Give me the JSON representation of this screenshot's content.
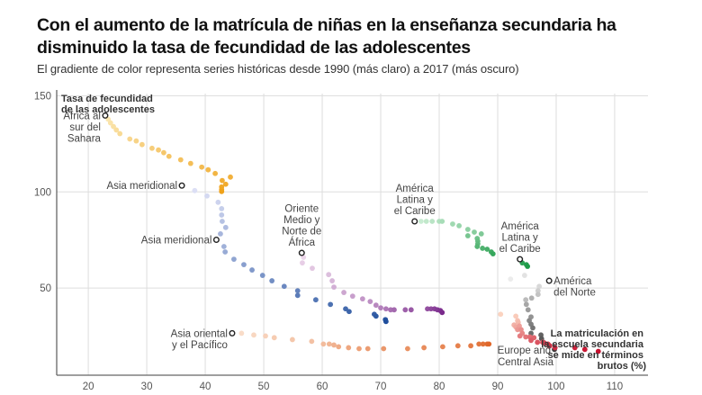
{
  "header": {
    "title": "Con el aumento de la matrícula de niñas en la enseñanza secundaria ha disminuido la tasa de fecundidad de las adolescentes",
    "subtitle": "El gradiente de color representa series históricas desde 1990 (más claro) a 2017 (más oscuro)"
  },
  "chart_data": {
    "type": "scatter",
    "title": "Con el aumento de la matrícula de niñas en la enseñanza secundaria ha disminuido la tasa de fecundidad de las adolescentes",
    "subtitle": "El gradiente de color representa series históricas desde 1990 (más claro) a 2017 (más oscuro)",
    "xlabel": "La matriculación en la escuela secundaria se mide en términos brutos (%)",
    "ylabel": "Tasa de fecundidad de las adolescentes",
    "xlim": [
      14.6,
      115.7
    ],
    "ylim": [
      4.7,
      153
    ],
    "x_ticks": [
      20,
      30,
      40,
      50,
      60,
      70,
      80,
      90,
      100,
      110
    ],
    "y_ticks": [
      50,
      100,
      150
    ],
    "grid": true,
    "color_encoding": "gradient light (1990) to dark (2017)",
    "series": [
      {
        "name": "África al sur del Sahara",
        "color_light": "#fbe9b7",
        "color_dark": "#efa21a",
        "points": [
          [
            22.9,
            139.7
          ],
          [
            23.4,
            137.8
          ],
          [
            23.8,
            135.9
          ],
          [
            24.3,
            134.0
          ],
          [
            24.8,
            132.2
          ],
          [
            25.4,
            130.3
          ],
          [
            27.1,
            127.5
          ],
          [
            28.2,
            126.5
          ],
          [
            29.2,
            124.6
          ],
          [
            30.9,
            122.7
          ],
          [
            32.0,
            121.8
          ],
          [
            32.9,
            120.4
          ],
          [
            33.8,
            118.5
          ],
          [
            35.8,
            116.7
          ],
          [
            37.5,
            114.8
          ],
          [
            39.4,
            112.9
          ],
          [
            40.5,
            111.5
          ],
          [
            41.7,
            109.6
          ],
          [
            44.3,
            107.7
          ],
          [
            42.9,
            105.9
          ],
          [
            43.5,
            104.0
          ],
          [
            42.8,
            102.6
          ],
          [
            42.8,
            101.2
          ],
          [
            42.8,
            100.2
          ]
        ]
      },
      {
        "name": "Asia meridional",
        "color_light": "#dcdff5",
        "color_dark": "#1f4e9c",
        "points": [
          [
            38.2,
            100.7
          ],
          [
            40.3,
            97.9
          ],
          [
            42.2,
            94.6
          ],
          [
            42.8,
            91.3
          ],
          [
            42.8,
            88.0
          ],
          [
            42.9,
            84.7
          ],
          [
            43.5,
            81.5
          ],
          [
            42.6,
            78.2
          ],
          [
            43.2,
            71.6
          ],
          [
            43.4,
            68.8
          ],
          [
            44.9,
            65.0
          ],
          [
            46.6,
            62.2
          ],
          [
            48.0,
            59.4
          ],
          [
            49.8,
            56.6
          ],
          [
            51.4,
            53.8
          ],
          [
            53.5,
            50.9
          ],
          [
            55.8,
            48.6
          ],
          [
            55.8,
            46.2
          ],
          [
            58.9,
            43.9
          ],
          [
            61.4,
            41.5
          ],
          [
            64.0,
            39.2
          ],
          [
            64.6,
            37.8
          ],
          [
            68.9,
            36.4
          ],
          [
            69.2,
            35.4
          ],
          [
            70.8,
            33.6
          ],
          [
            70.9,
            32.6
          ]
        ]
      },
      {
        "name": "Oriente Medio y Norte de África",
        "color_light": "#ecd6ea",
        "color_dark": "#7a2a8c",
        "points": [
          [
            56.8,
            66.0
          ],
          [
            56.6,
            63.1
          ],
          [
            58.3,
            60.3
          ],
          [
            61.1,
            57.0
          ],
          [
            61.7,
            53.8
          ],
          [
            62.0,
            50.5
          ],
          [
            63.7,
            47.7
          ],
          [
            65.2,
            45.8
          ],
          [
            66.9,
            44.4
          ],
          [
            68.2,
            43.0
          ],
          [
            69.2,
            41.1
          ],
          [
            70.0,
            39.7
          ],
          [
            70.9,
            39.2
          ],
          [
            71.7,
            38.7
          ],
          [
            72.3,
            38.7
          ],
          [
            74.2,
            38.7
          ],
          [
            75.2,
            38.7
          ],
          [
            78.0,
            39.2
          ],
          [
            78.6,
            39.2
          ],
          [
            79.2,
            39.2
          ],
          [
            79.7,
            38.7
          ],
          [
            80.2,
            38.3
          ],
          [
            80.5,
            37.3
          ]
        ]
      },
      {
        "name": "América Latina y el Caribe",
        "color_light": "#c9ecd2",
        "color_dark": "#1e9b48",
        "points": [
          [
            76.9,
            84.7
          ],
          [
            77.8,
            84.7
          ],
          [
            78.8,
            84.7
          ],
          [
            80.0,
            84.7
          ],
          [
            80.5,
            84.7
          ],
          [
            82.3,
            83.3
          ],
          [
            83.4,
            82.4
          ],
          [
            84.9,
            80.5
          ],
          [
            86.0,
            79.1
          ],
          [
            87.2,
            78.2
          ],
          [
            84.9,
            77.2
          ],
          [
            86.5,
            75.8
          ],
          [
            86.6,
            74.4
          ],
          [
            86.6,
            73.0
          ],
          [
            86.5,
            71.6
          ],
          [
            87.4,
            70.7
          ],
          [
            88.2,
            70.2
          ],
          [
            88.9,
            68.8
          ],
          [
            89.2,
            67.8
          ],
          [
            94.2,
            63.1
          ],
          [
            94.9,
            62.2
          ],
          [
            95.1,
            61.3
          ]
        ]
      },
      {
        "name": "América del Norte",
        "color_light": "#ececec",
        "color_dark": "#3a3a3a",
        "points": [
          [
            92.2,
            54.7
          ],
          [
            94.6,
            56.6
          ],
          [
            97.1,
            50.9
          ],
          [
            96.9,
            48.6
          ],
          [
            96.9,
            46.7
          ],
          [
            94.8,
            43.9
          ],
          [
            95.8,
            44.8
          ],
          [
            94.9,
            41.5
          ],
          [
            95.2,
            38.7
          ],
          [
            95.7,
            35.0
          ],
          [
            95.4,
            33.1
          ],
          [
            95.7,
            31.2
          ],
          [
            96.0,
            29.3
          ],
          [
            95.7,
            26.5
          ],
          [
            97.4,
            25.6
          ],
          [
            97.5,
            23.7
          ],
          [
            97.8,
            21.8
          ],
          [
            98.8,
            20.0
          ],
          [
            99.7,
            18.1
          ]
        ]
      },
      {
        "name": "Europe and Central Asia",
        "color_light": "#fbd3c0",
        "color_dark": "#c8102e",
        "points": [
          [
            90.5,
            36.4
          ],
          [
            93.1,
            35.4
          ],
          [
            93.4,
            33.1
          ],
          [
            93.5,
            32.2
          ],
          [
            92.8,
            30.8
          ],
          [
            93.1,
            29.8
          ],
          [
            93.7,
            30.3
          ],
          [
            93.4,
            28.4
          ],
          [
            94.0,
            28.4
          ],
          [
            94.2,
            26.5
          ],
          [
            93.8,
            25.1
          ],
          [
            94.8,
            24.6
          ],
          [
            95.5,
            24.6
          ],
          [
            96.2,
            24.2
          ],
          [
            95.7,
            22.8
          ],
          [
            96.8,
            21.8
          ],
          [
            97.7,
            21.8
          ],
          [
            98.0,
            21.4
          ],
          [
            98.6,
            20.9
          ],
          [
            98.9,
            20.0
          ],
          [
            99.8,
            19.0
          ],
          [
            103.2,
            19.0
          ],
          [
            104.9,
            18.1
          ],
          [
            107.2,
            17.1
          ]
        ]
      },
      {
        "name": "Asia oriental y el Pacífico",
        "color_light": "#f9dcc8",
        "color_dark": "#e0672a",
        "points": [
          [
            46.2,
            26.5
          ],
          [
            48.3,
            25.6
          ],
          [
            50.3,
            25.1
          ],
          [
            51.8,
            24.2
          ],
          [
            54.9,
            23.2
          ],
          [
            58.2,
            22.3
          ],
          [
            60.2,
            20.9
          ],
          [
            61.2,
            20.9
          ],
          [
            62.0,
            20.4
          ],
          [
            62.8,
            19.5
          ],
          [
            64.5,
            19.0
          ],
          [
            66.3,
            18.5
          ],
          [
            67.8,
            18.5
          ],
          [
            70.5,
            18.5
          ],
          [
            74.6,
            18.5
          ],
          [
            77.4,
            19.0
          ],
          [
            80.6,
            19.5
          ],
          [
            83.2,
            20.0
          ],
          [
            85.4,
            20.0
          ],
          [
            86.8,
            20.9
          ],
          [
            87.5,
            20.9
          ],
          [
            88.2,
            20.9
          ],
          [
            88.5,
            20.9
          ]
        ]
      }
    ],
    "markers": [
      {
        "label": "África al sur del Sahara",
        "lines": [
          "África al",
          "sur del",
          "Sahara"
        ],
        "x": 22.9,
        "y": 139.7,
        "anchor": "end"
      },
      {
        "label": "Asia meridional",
        "lines": [
          "Asia meridional"
        ],
        "x": 36.0,
        "y": 103.3,
        "anchor": "end"
      },
      {
        "label": "Asia meridional",
        "lines": [
          "Asia meridional"
        ],
        "x": 41.9,
        "y": 75.1,
        "anchor": "end"
      },
      {
        "label": "Oriente Medio y Norte de África",
        "lines": [
          "Oriente",
          "Medio y",
          "Norte de",
          "África"
        ],
        "x": 56.5,
        "y": 68.3,
        "anchor": "above"
      },
      {
        "label": "América Latina y el Caribe",
        "lines": [
          "América",
          "Latina y",
          "el Caribe"
        ],
        "x": 75.8,
        "y": 84.7,
        "anchor": "above"
      },
      {
        "label": "América Latina y el Caribe",
        "lines": [
          "América",
          "Latina y",
          "el Caribe"
        ],
        "x": 93.8,
        "y": 65.0,
        "anchor": "above"
      },
      {
        "label": "América del Norte",
        "lines": [
          "América",
          "del Norte"
        ],
        "x": 98.8,
        "y": 53.8,
        "anchor": "start"
      },
      {
        "label": "Asia oriental y el Pacífico",
        "lines": [
          "Asia oriental",
          "y el Pacífico"
        ],
        "x": 44.6,
        "y": 26.5,
        "anchor": "end"
      }
    ],
    "annotations": {
      "y_axis_title": [
        "Tasa de fecundidad",
        "de las adolescentes"
      ],
      "x_axis_title": [
        "La matriculación en",
        "la escuela secundaria",
        "se mide en términos",
        "brutos (%)"
      ],
      "europe_label": [
        "Europe and",
        "Central Asia"
      ]
    }
  }
}
